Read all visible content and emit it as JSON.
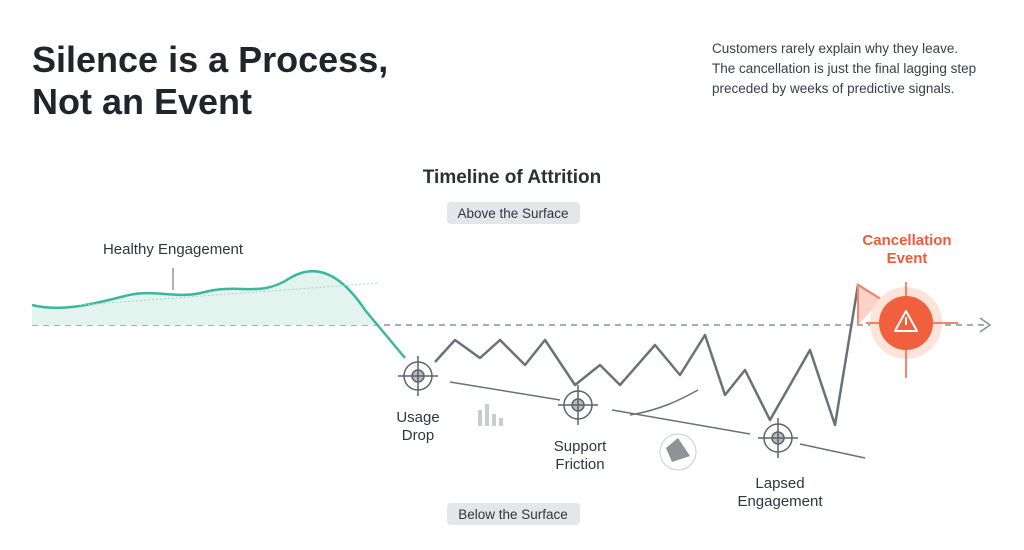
{
  "header": {
    "title_lines": [
      "Silence is a Process,",
      "Not an Event"
    ],
    "description_lines": [
      "Customers rarely explain why they leave.",
      "The cancellation is just the final lagging step",
      "preceded by weeks of predictive signals."
    ]
  },
  "diagram": {
    "title": "Timeline of Attrition",
    "above_label": "Above the Surface",
    "below_label": "Below the Surface",
    "healthy_label": "Healthy Engagement",
    "stages": [
      {
        "label_lines": [
          "Usage",
          "Drop"
        ]
      },
      {
        "label_lines": [
          "Support",
          "Friction"
        ]
      },
      {
        "label_lines": [
          "Lapsed",
          "Engagement"
        ]
      }
    ],
    "cancellation_lines": [
      "Cancellation",
      "Event"
    ]
  }
}
